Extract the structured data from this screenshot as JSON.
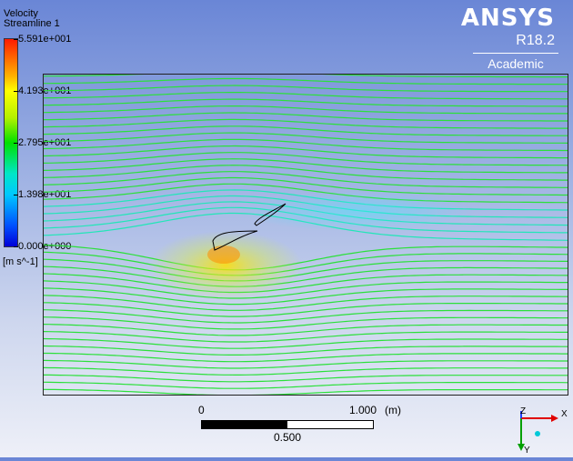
{
  "legend": {
    "title_line1": "Velocity",
    "title_line2": "Streamline 1",
    "ticks": [
      "5.591e+001",
      "4.193e+001",
      "2.795e+001",
      "1.398e+001",
      "0.000e+000"
    ],
    "units": "[m s^-1]"
  },
  "logo": {
    "name": "ANSYS",
    "version": "R18.2",
    "edition": "Academic"
  },
  "scale": {
    "start": "0",
    "end": "1.000",
    "unit": "(m)",
    "mid": "0.500"
  },
  "axes": {
    "z": "Z",
    "x": "X",
    "y": "Y"
  },
  "colors": {
    "low": "#0000d8",
    "mid": "#00e000",
    "high": "#ff1a00",
    "accent": "#ffff00"
  }
}
